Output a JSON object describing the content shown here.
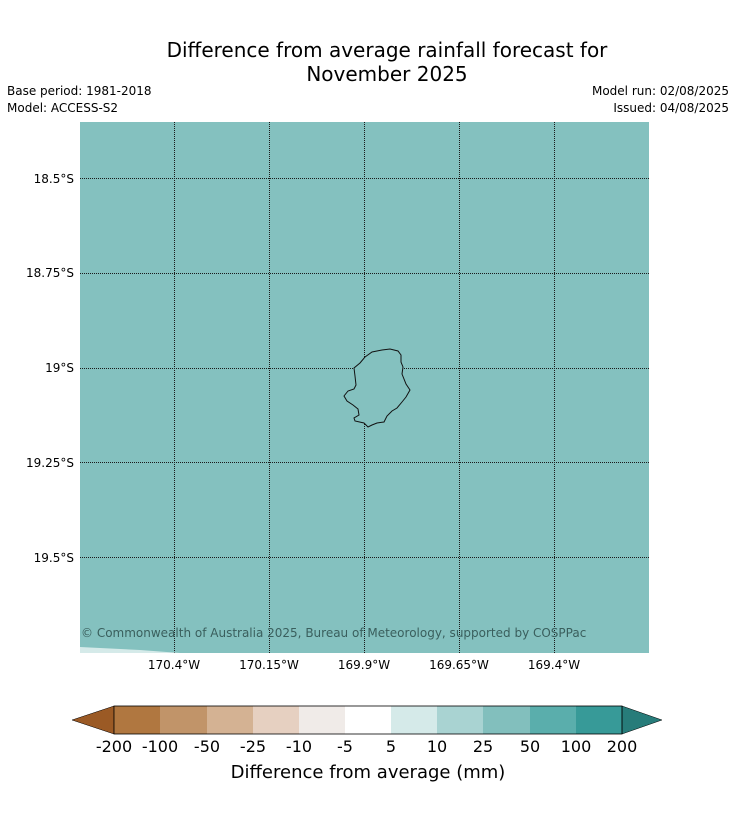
{
  "title_line1": "Difference from average rainfall forecast for",
  "title_line2": "November 2025",
  "base_period": "Base period: 1981-2018",
  "model": "Model: ACCESS-S2",
  "model_run": "Model run: 02/08/2025",
  "issued": "Issued: 04/08/2025",
  "map": {
    "ocean_color": "#84c1bf",
    "lat_labels": [
      "18.5°S",
      "18.75°S",
      "19°S",
      "19.25°S",
      "19.5°S"
    ],
    "lon_labels": [
      "170.4°W",
      "170.15°W",
      "169.9°W",
      "169.65°W",
      "169.4°W"
    ],
    "copyright": "© Commonwealth of Australia 2025, Bureau of Meteorology, supported by COSPPac"
  },
  "colorbar": {
    "ticks": [
      "-200",
      "-100",
      "-50",
      "-25",
      "-10",
      "-5",
      "5",
      "10",
      "25",
      "50",
      "100",
      "200"
    ],
    "colors": [
      "#9b5a25",
      "#b07740",
      "#c19469",
      "#d4b293",
      "#e6d0c1",
      "#f0ebe8",
      "#ffffff",
      "#d5eae9",
      "#a9d3d2",
      "#82bfbd",
      "#5aaeac",
      "#379a98",
      "#277c7a"
    ],
    "label": "Difference from average (mm)"
  }
}
